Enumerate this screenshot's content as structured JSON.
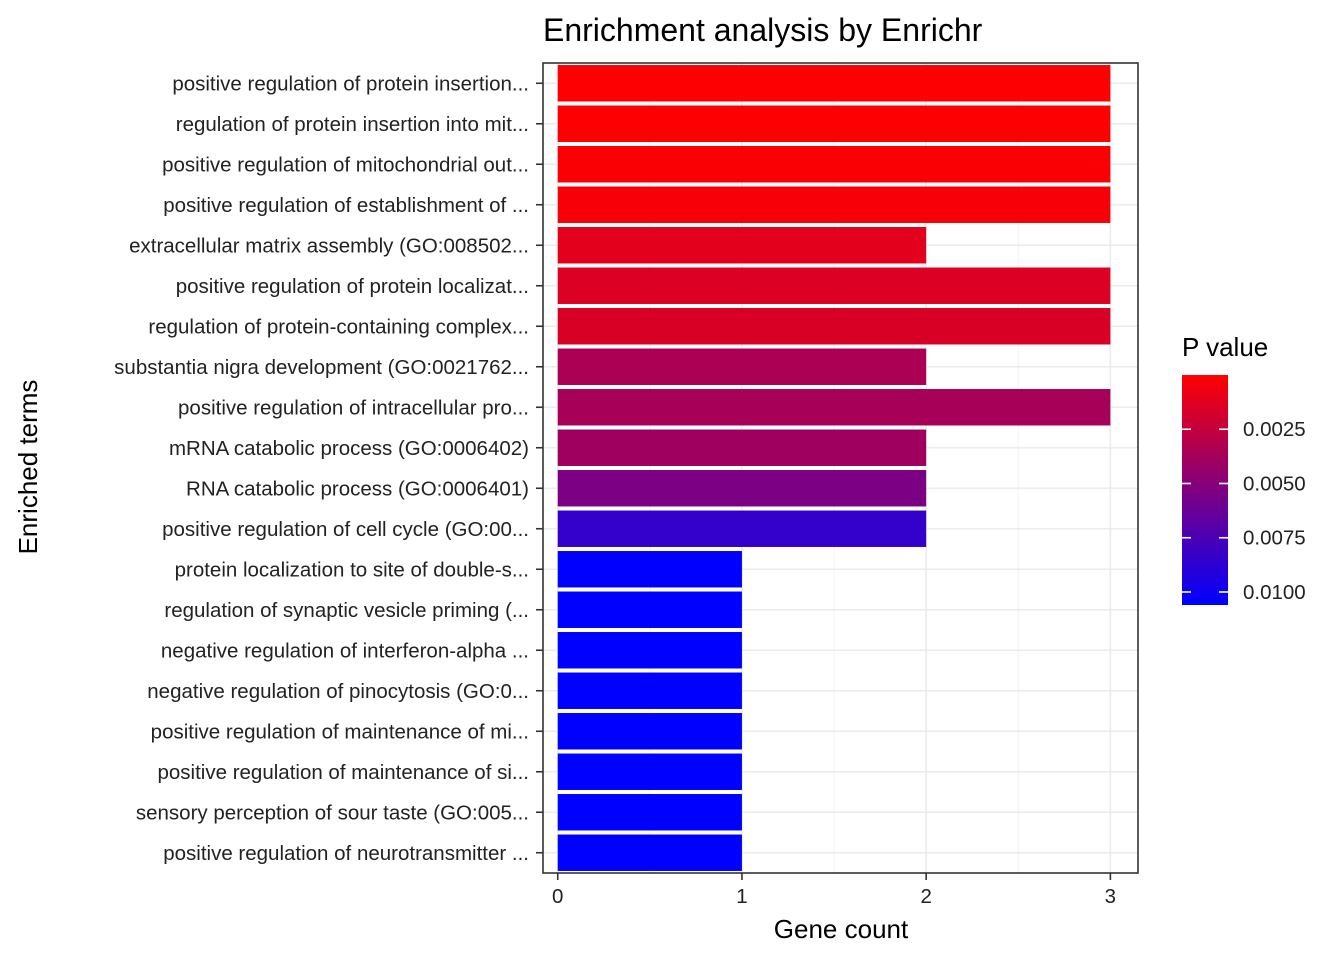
{
  "chart_data": {
    "type": "bar",
    "orientation": "horizontal",
    "title": "Enrichment analysis by Enrichr",
    "xlabel": "Gene count",
    "ylabel": "Enriched terms",
    "xlim": [
      -0.08,
      3.15
    ],
    "xticks": [
      0,
      1,
      2,
      3
    ],
    "xtick_labels": [
      "0",
      "1",
      "2",
      "3"
    ],
    "grid": true,
    "categories": [
      "positive regulation of protein insertion...",
      "regulation of protein insertion into mit...",
      "positive regulation of mitochondrial out...",
      "positive regulation of establishment of ...",
      "extracellular matrix assembly (GO:008502...",
      "positive regulation of protein localizat...",
      "regulation of protein-containing complex...",
      "substantia nigra development (GO:0021762...",
      "positive regulation of intracellular pro...",
      "mRNA catabolic process (GO:0006402)",
      "RNA catabolic process (GO:0006401)",
      "positive regulation of cell cycle (GO:00...",
      "protein localization to site of double-s...",
      "regulation of synaptic vesicle priming (...",
      "negative regulation of interferon-alpha ...",
      "negative regulation of pinocytosis (GO:0...",
      "positive regulation of maintenance of mi...",
      "positive regulation of maintenance of si...",
      "sensory perception of sour taste (GO:005...",
      "positive regulation of neurotransmitter ..."
    ],
    "values": [
      3,
      3,
      3,
      3,
      2,
      3,
      3,
      2,
      3,
      2,
      2,
      2,
      1,
      1,
      1,
      1,
      1,
      1,
      1,
      1
    ],
    "p_values": [
      0.0001,
      0.0001,
      0.0002,
      0.0003,
      0.0012,
      0.0015,
      0.0016,
      0.0035,
      0.0037,
      0.004,
      0.0055,
      0.0085,
      0.0106,
      0.0106,
      0.0106,
      0.0106,
      0.0106,
      0.0106,
      0.0106,
      0.0106
    ],
    "legend": {
      "title": "P value",
      "placement": "right",
      "range": [
        0.0,
        0.0106
      ],
      "breaks": [
        0.0025,
        0.005,
        0.0075,
        0.01
      ],
      "break_labels": [
        "0.0025",
        "0.0050",
        "0.0075",
        "0.0100"
      ],
      "low_color": "#ff0000",
      "high_color": "#0000ff"
    }
  }
}
